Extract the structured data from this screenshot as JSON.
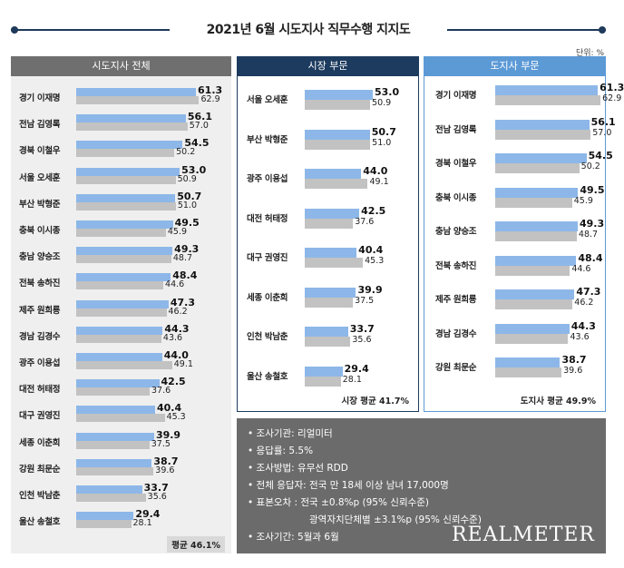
{
  "title": "2021년 6월 시도지사 직무수행 지지도",
  "unit": "단위: %",
  "chart_data": [
    {
      "type": "bar",
      "title": "시도지사 전체",
      "categories": [
        "경기 이재명",
        "전남 김영록",
        "경북 이철우",
        "서울 오세훈",
        "부산 박형준",
        "충북 이시종",
        "충남 양승조",
        "전북 송하진",
        "제주 원희룡",
        "경남 김경수",
        "광주 이용섭",
        "대전 허태정",
        "대구 권영진",
        "세종 이춘희",
        "강원 최문순",
        "인천 박남춘",
        "울산 송철호"
      ],
      "series": [
        {
          "values": [
            61.3,
            56.1,
            54.5,
            53.0,
            50.7,
            49.5,
            49.3,
            48.4,
            47.3,
            44.3,
            44.0,
            42.5,
            40.4,
            39.9,
            38.7,
            33.7,
            29.4
          ]
        },
        {
          "values": [
            62.9,
            57.0,
            50.2,
            50.9,
            51.0,
            45.9,
            48.7,
            44.6,
            46.2,
            43.6,
            49.1,
            37.6,
            45.3,
            37.5,
            39.6,
            35.6,
            28.1
          ]
        }
      ],
      "xlim": [
        0,
        65
      ],
      "average": "평균 46.1%"
    },
    {
      "type": "bar",
      "title": "시장 부문",
      "categories": [
        "서울 오세훈",
        "부산 박형준",
        "광주 이용섭",
        "대전 허태정",
        "대구 권영진",
        "세종 이춘희",
        "인천 박남춘",
        "울산 송철호"
      ],
      "series": [
        {
          "values": [
            53.0,
            50.7,
            44.0,
            42.5,
            40.4,
            39.9,
            33.7,
            29.4
          ]
        },
        {
          "values": [
            50.9,
            51.0,
            49.1,
            37.6,
            45.3,
            37.5,
            35.6,
            28.1
          ]
        }
      ],
      "xlim": [
        0,
        65
      ],
      "average": "시장 평균 41.7%"
    },
    {
      "type": "bar",
      "title": "도지사 부문",
      "categories": [
        "경기 이재명",
        "전남 김영록",
        "경북 이철우",
        "충북 이시종",
        "충남 양승조",
        "전북 송하진",
        "제주 원희룡",
        "경남 김경수",
        "강원 최문순"
      ],
      "series": [
        {
          "values": [
            61.3,
            56.1,
            54.5,
            49.5,
            49.3,
            48.4,
            47.3,
            44.3,
            38.7
          ]
        },
        {
          "values": [
            62.9,
            57.0,
            50.2,
            45.9,
            48.7,
            44.6,
            46.2,
            43.6,
            39.6
          ]
        }
      ],
      "xlim": [
        0,
        65
      ],
      "average": "도지사 평균 49.9%"
    }
  ],
  "info": {
    "lines": [
      "• 조사기관: 리얼미터",
      "• 응답률: 5.5%",
      "• 조사방법: 유무선 RDD",
      "• 전체 응답자: 전국 만 18세 이상 남녀 17,000명",
      "• 표본오차 : 전국 ±0.8%p (95% 신뢰수준)",
      "광역자치단체별 ±3.1%p (95% 신뢰수준)",
      "• 조사기간: 5월과 6월"
    ],
    "brand": "REALMETER"
  },
  "colors": {
    "bar_2021": "#8db7e8",
    "bar_2020": "#c2c2c2",
    "header_all": "#6f6f6f",
    "header_mayor": "#1c3b5e",
    "header_governor": "#5c9ad6",
    "info_bg": "#6b6b6b"
  }
}
